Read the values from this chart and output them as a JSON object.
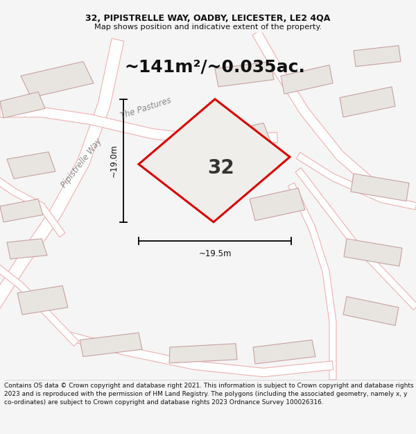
{
  "title_line1": "32, PIPISTRELLE WAY, OADBY, LEICESTER, LE2 4QA",
  "title_line2": "Map shows position and indicative extent of the property.",
  "area_text": "~141m²/~0.035ac.",
  "property_number": "32",
  "dim_vertical": "~19.0m",
  "dim_horizontal": "~19.5m",
  "road_label": "Pipistrelle Way",
  "road_label2": "The Pastures",
  "footer_text": "Contains OS data © Crown copyright and database right 2021. This information is subject to Crown copyright and database rights 2023 and is reproduced with the permission of HM Land Registry. The polygons (including the associated geometry, namely x, y co-ordinates) are subject to Crown copyright and database rights 2023 Ordnance Survey 100026316.",
  "bg_color": "#f5f5f5",
  "map_bg": "#ffffff",
  "property_fill": "#f0eeeb",
  "property_edge": "#dd0000",
  "neighbor_fill": "#e8e5e0",
  "neighbor_edge": "#c8a0a0",
  "road_line_color": "#f0b0b0",
  "title_fontsize": 9.0,
  "subtitle_fontsize": 8.2,
  "footer_fontsize": 6.5,
  "area_fontsize": 18,
  "number_fontsize": 20,
  "dim_fontsize": 8.5,
  "road_label_fontsize": 8.5
}
